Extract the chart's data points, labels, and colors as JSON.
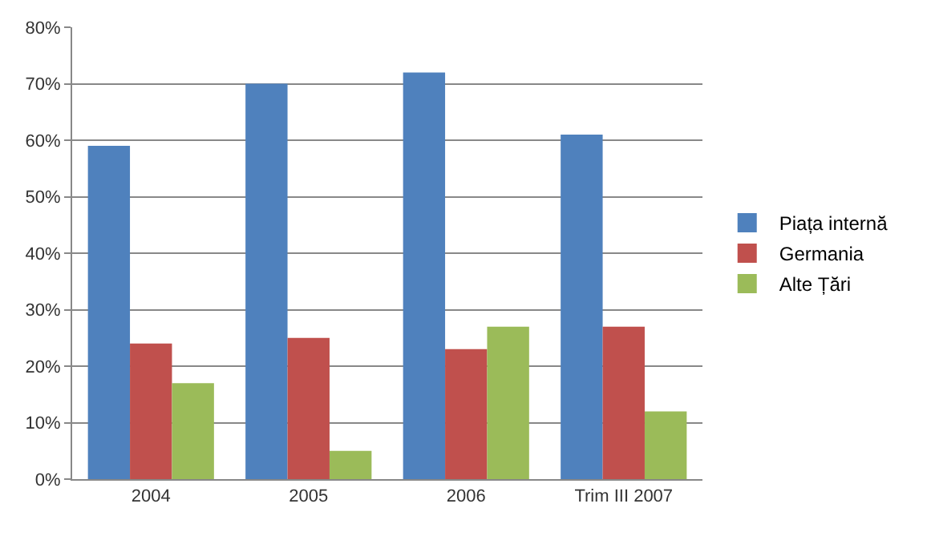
{
  "chart_data": {
    "type": "bar",
    "categories": [
      "2004",
      "2005",
      "2006",
      "Trim III 2007"
    ],
    "series": [
      {
        "name": "Piața internă",
        "color": "#4f81bd",
        "values": [
          59,
          70,
          72,
          61
        ]
      },
      {
        "name": "Germania",
        "color": "#c0504d",
        "values": [
          24,
          25,
          23,
          27
        ]
      },
      {
        "name": "Alte Țări",
        "color": "#9bbb59",
        "values": [
          17,
          5,
          27,
          12
        ]
      }
    ],
    "ylim": [
      0,
      80
    ],
    "yticks": [
      {
        "value": 0,
        "label": "0%"
      },
      {
        "value": 10,
        "label": "10%"
      },
      {
        "value": 20,
        "label": "20%"
      },
      {
        "value": 30,
        "label": "30%"
      },
      {
        "value": 40,
        "label": "40%"
      },
      {
        "value": 50,
        "label": "50%"
      },
      {
        "value": 60,
        "label": "60%"
      },
      {
        "value": 70,
        "label": "70%"
      },
      {
        "value": 80,
        "label": "80%"
      }
    ],
    "grid": "y",
    "legend": "right"
  }
}
